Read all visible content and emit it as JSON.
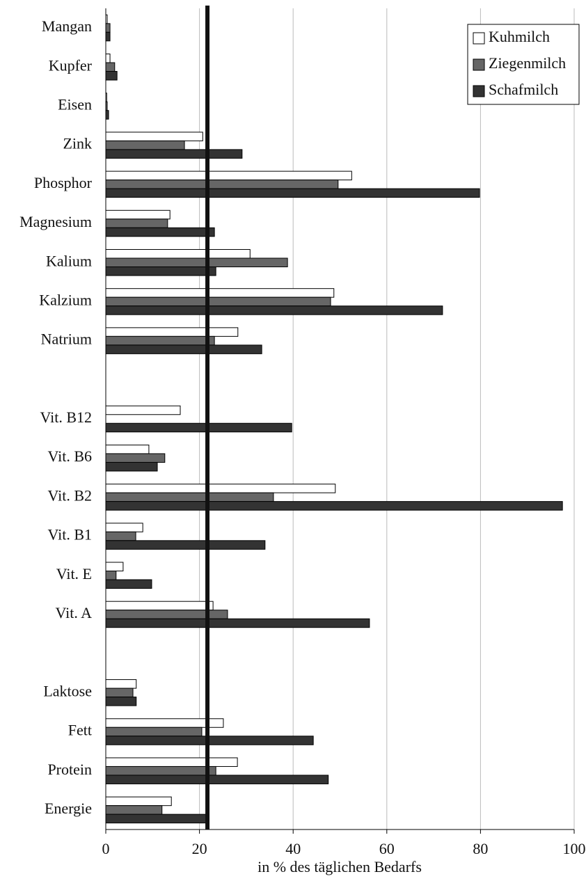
{
  "chart_data": {
    "type": "hbar",
    "x_label": "in % des täglichen Bedarfs",
    "categories": [
      "Mangan",
      "Kupfer",
      "Eisen",
      "Zink",
      "Phosphor",
      "Magnesium",
      "Kalium",
      "Kalzium",
      "Natrium",
      null,
      "Vit. B12",
      "Vit. B6",
      "Vit. B2",
      "Vit. B1",
      "Vit. E",
      "Vit. A",
      null,
      "Laktose",
      "Fett",
      "Protein",
      "Energie"
    ],
    "series": [
      {
        "name": "Kuhmilch",
        "color": "#ffffff",
        "values": [
          0.3,
          0.9,
          0.2,
          20.7,
          52.5,
          13.7,
          30.8,
          48.7,
          28.2,
          null,
          15.9,
          9.2,
          49.0,
          7.9,
          3.7,
          22.9,
          null,
          6.5,
          25.1,
          28.1,
          14.0
        ]
      },
      {
        "name": "Ziegenmilch",
        "color": "#666666",
        "values": [
          0.9,
          1.9,
          0.3,
          16.8,
          49.6,
          13.2,
          38.8,
          48.0,
          23.2,
          null,
          0,
          12.6,
          35.8,
          6.4,
          2.2,
          26.0,
          null,
          5.8,
          20.5,
          23.5,
          12.0
        ]
      },
      {
        "name": "Schafmilch",
        "color": "#333333",
        "values": [
          0.9,
          2.4,
          0.6,
          29.1,
          79.8,
          23.2,
          23.5,
          71.9,
          33.3,
          null,
          39.7,
          11.0,
          97.5,
          34.0,
          9.8,
          56.3,
          null,
          6.5,
          44.3,
          47.5,
          21.7
        ]
      }
    ],
    "xlim": [
      0,
      100
    ],
    "xticks": [
      0,
      20,
      40,
      60,
      80,
      100
    ],
    "grid": true,
    "reference_x": 21.7,
    "legend": "top-right"
  }
}
